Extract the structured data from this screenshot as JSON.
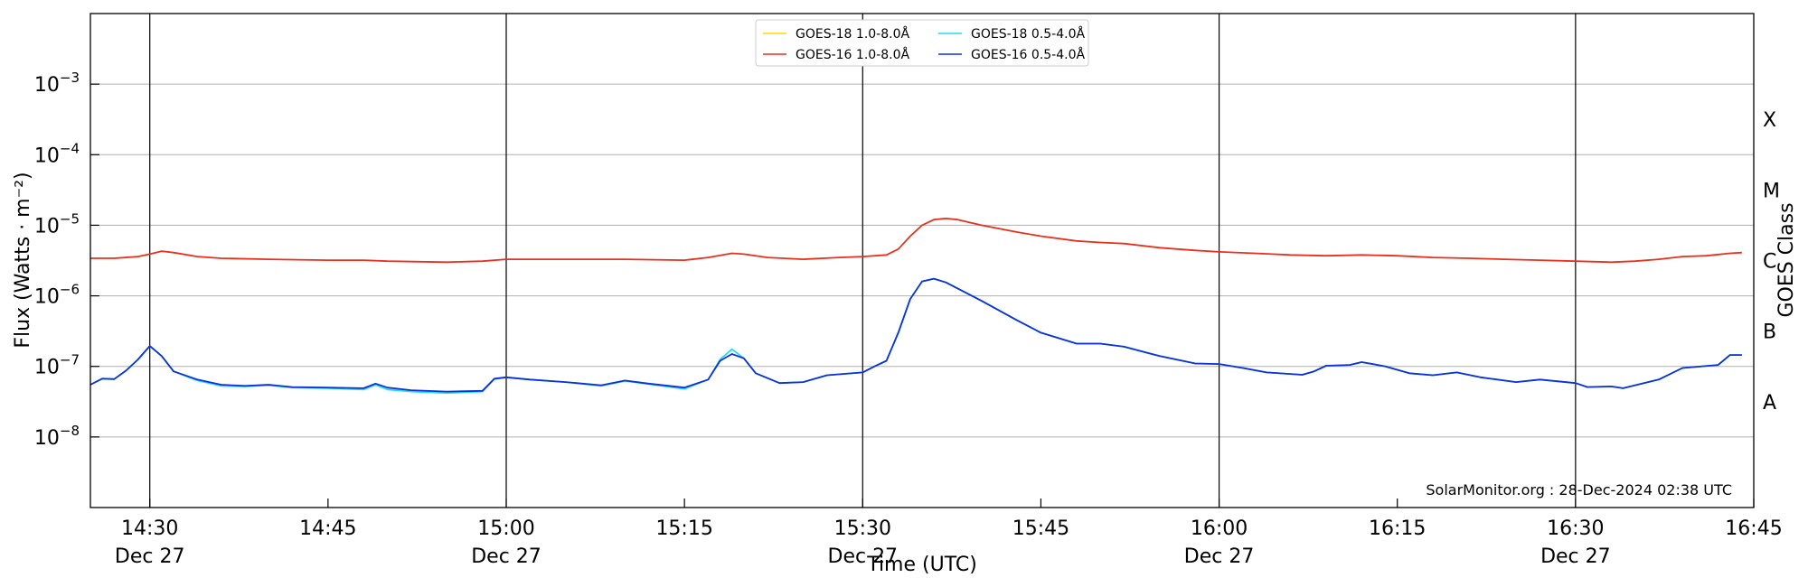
{
  "chart_data": {
    "type": "line",
    "xlabel": "Time (UTC)",
    "ylabel": "Flux (Watts · m⁻²)",
    "ylabel_right": "GOES Class",
    "yscale": "log",
    "xlim": [
      "14:25",
      "16:45"
    ],
    "ylim": [
      1e-09,
      0.01
    ],
    "grid": "horizontal at decades",
    "legend_position": "top-center",
    "x_ticks": [
      {
        "time": "14:30",
        "label": "14:30",
        "date": "Dec 27"
      },
      {
        "time": "14:45",
        "label": "14:45",
        "date": ""
      },
      {
        "time": "15:00",
        "label": "15:00",
        "date": "Dec 27"
      },
      {
        "time": "15:15",
        "label": "15:15",
        "date": ""
      },
      {
        "time": "15:30",
        "label": "15:30",
        "date": "Dec 27"
      },
      {
        "time": "15:45",
        "label": "15:45",
        "date": ""
      },
      {
        "time": "16:00",
        "label": "16:00",
        "date": "Dec 27"
      },
      {
        "time": "16:15",
        "label": "16:15",
        "date": ""
      },
      {
        "time": "16:30",
        "label": "16:30",
        "date": "Dec 27"
      },
      {
        "time": "16:45",
        "label": "16:45",
        "date": ""
      }
    ],
    "vertical_lines": [
      "14:30",
      "15:00",
      "15:30",
      "16:00",
      "16:30"
    ],
    "y_ticks": [
      {
        "value": 1e-08,
        "base": "10",
        "exp": "−8"
      },
      {
        "value": 1e-07,
        "base": "10",
        "exp": "−7"
      },
      {
        "value": 1e-06,
        "base": "10",
        "exp": "−6"
      },
      {
        "value": 1e-05,
        "base": "10",
        "exp": "−5"
      },
      {
        "value": 0.0001,
        "base": "10",
        "exp": "−4"
      },
      {
        "value": 0.001,
        "base": "10",
        "exp": "−3"
      }
    ],
    "goes_classes": [
      {
        "label": "A",
        "value": 3.16e-08
      },
      {
        "label": "B",
        "value": 3.16e-07
      },
      {
        "label": "C",
        "value": 3.16e-06
      },
      {
        "label": "M",
        "value": 3.16e-05
      },
      {
        "label": "X",
        "value": 0.000316
      }
    ],
    "series": [
      {
        "name": "GOES-18 1.0-8.0Å",
        "color": "#ffd700",
        "points": []
      },
      {
        "name": "GOES-16 1.0-8.0Å",
        "color": "#e8301c",
        "points": [
          [
            "14:25",
            3.4e-06
          ],
          [
            "14:27",
            3.4e-06
          ],
          [
            "14:29",
            3.6e-06
          ],
          [
            "14:30",
            3.9e-06
          ],
          [
            "14:31",
            4.3e-06
          ],
          [
            "14:32",
            4.1e-06
          ],
          [
            "14:34",
            3.6e-06
          ],
          [
            "14:36",
            3.4e-06
          ],
          [
            "14:40",
            3.3e-06
          ],
          [
            "14:45",
            3.2e-06
          ],
          [
            "14:48",
            3.2e-06
          ],
          [
            "14:50",
            3.1e-06
          ],
          [
            "14:55",
            3e-06
          ],
          [
            "14:58",
            3.1e-06
          ],
          [
            "15:00",
            3.3e-06
          ],
          [
            "15:05",
            3.3e-06
          ],
          [
            "15:10",
            3.3e-06
          ],
          [
            "15:15",
            3.2e-06
          ],
          [
            "15:17",
            3.5e-06
          ],
          [
            "15:19",
            4e-06
          ],
          [
            "15:20",
            3.9e-06
          ],
          [
            "15:22",
            3.5e-06
          ],
          [
            "15:25",
            3.3e-06
          ],
          [
            "15:28",
            3.5e-06
          ],
          [
            "15:30",
            3.6e-06
          ],
          [
            "15:32",
            3.8e-06
          ],
          [
            "15:33",
            4.6e-06
          ],
          [
            "15:34",
            7e-06
          ],
          [
            "15:35",
            1e-05
          ],
          [
            "15:36",
            1.2e-05
          ],
          [
            "15:37",
            1.25e-05
          ],
          [
            "15:38",
            1.2e-05
          ],
          [
            "15:40",
            1e-05
          ],
          [
            "15:43",
            8e-06
          ],
          [
            "15:45",
            7e-06
          ],
          [
            "15:48",
            6e-06
          ],
          [
            "15:50",
            5.7e-06
          ],
          [
            "15:52",
            5.5e-06
          ],
          [
            "15:55",
            4.8e-06
          ],
          [
            "15:58",
            4.4e-06
          ],
          [
            "16:00",
            4.2e-06
          ],
          [
            "16:03",
            4e-06
          ],
          [
            "16:06",
            3.8e-06
          ],
          [
            "16:09",
            3.7e-06
          ],
          [
            "16:12",
            3.8e-06
          ],
          [
            "16:15",
            3.7e-06
          ],
          [
            "16:18",
            3.5e-06
          ],
          [
            "16:21",
            3.4e-06
          ],
          [
            "16:24",
            3.3e-06
          ],
          [
            "16:27",
            3.2e-06
          ],
          [
            "16:30",
            3.1e-06
          ],
          [
            "16:33",
            3e-06
          ],
          [
            "16:35",
            3.1e-06
          ],
          [
            "16:37",
            3.3e-06
          ],
          [
            "16:39",
            3.6e-06
          ],
          [
            "16:41",
            3.7e-06
          ],
          [
            "16:43",
            4e-06
          ],
          [
            "16:44",
            4.1e-06
          ]
        ]
      },
      {
        "name": "GOES-18 0.5-4.0Å",
        "color": "#22ddee",
        "points": [
          [
            "14:25",
            5.5e-08
          ],
          [
            "14:26",
            6.7e-08
          ],
          [
            "14:27",
            6.6e-08
          ],
          [
            "14:28",
            8.7e-08
          ],
          [
            "14:29",
            1.25e-07
          ],
          [
            "14:30",
            1.95e-07
          ],
          [
            "14:31",
            1.4e-07
          ],
          [
            "14:32",
            8.5e-08
          ],
          [
            "14:34",
            6.3e-08
          ],
          [
            "14:36",
            5.3e-08
          ],
          [
            "14:38",
            5.2e-08
          ],
          [
            "14:40",
            5.4e-08
          ],
          [
            "14:42",
            5e-08
          ],
          [
            "14:45",
            4.9e-08
          ],
          [
            "14:48",
            4.7e-08
          ],
          [
            "14:49",
            5.5e-08
          ],
          [
            "14:50",
            4.7e-08
          ],
          [
            "14:52",
            4.4e-08
          ],
          [
            "14:55",
            4.2e-08
          ],
          [
            "14:58",
            4.4e-08
          ],
          [
            "14:59",
            6.6e-08
          ],
          [
            "15:00",
            7e-08
          ],
          [
            "15:02",
            6.5e-08
          ],
          [
            "15:05",
            6e-08
          ],
          [
            "15:08",
            5.3e-08
          ],
          [
            "15:10",
            6.2e-08
          ],
          [
            "15:12",
            5.6e-08
          ],
          [
            "15:15",
            4.8e-08
          ],
          [
            "15:17",
            6.5e-08
          ],
          [
            "15:18",
            1.25e-07
          ],
          [
            "15:19",
            1.75e-07
          ],
          [
            "15:20",
            1.3e-07
          ],
          [
            "15:21",
            8e-08
          ],
          [
            "15:23",
            5.8e-08
          ],
          [
            "15:25",
            6e-08
          ],
          [
            "15:27",
            7.5e-08
          ],
          [
            "15:30",
            8.2e-08
          ],
          [
            "15:31",
            1e-07
          ],
          [
            "15:32",
            1.2e-07
          ],
          [
            "15:33",
            3e-07
          ],
          [
            "15:34",
            9e-07
          ],
          [
            "15:35",
            1.6e-06
          ],
          [
            "15:36",
            1.75e-06
          ],
          [
            "15:37",
            1.55e-06
          ],
          [
            "15:40",
            8.5e-07
          ],
          [
            "15:43",
            4.5e-07
          ],
          [
            "15:45",
            3e-07
          ],
          [
            "15:48",
            2.1e-07
          ],
          [
            "15:50",
            2.1e-07
          ],
          [
            "15:52",
            1.9e-07
          ],
          [
            "15:55",
            1.4e-07
          ],
          [
            "15:58",
            1.1e-07
          ],
          [
            "16:00",
            1.08e-07
          ],
          [
            "16:02",
            9.5e-08
          ],
          [
            "16:04",
            8.2e-08
          ],
          [
            "16:07",
            7.6e-08
          ],
          [
            "16:08",
            8.5e-08
          ],
          [
            "16:09",
            1.02e-07
          ],
          [
            "16:11",
            1.05e-07
          ],
          [
            "16:12",
            1.15e-07
          ],
          [
            "16:14",
            1e-07
          ],
          [
            "16:16",
            8e-08
          ],
          [
            "16:18",
            7.5e-08
          ],
          [
            "16:20",
            8.2e-08
          ],
          [
            "16:22",
            7e-08
          ],
          [
            "16:25",
            6e-08
          ],
          [
            "16:27",
            6.5e-08
          ],
          [
            "16:30",
            5.8e-08
          ],
          [
            "16:31",
            5.1e-08
          ],
          [
            "16:33",
            5.2e-08
          ],
          [
            "16:34",
            4.9e-08
          ],
          [
            "16:37",
            6.5e-08
          ],
          [
            "16:39",
            9.5e-08
          ],
          [
            "16:42",
            1.05e-07
          ],
          [
            "16:43",
            1.45e-07
          ],
          [
            "16:44",
            1.45e-07
          ]
        ]
      },
      {
        "name": "GOES-16 0.5-4.0Å",
        "color": "#1030d8",
        "points": [
          [
            "14:25",
            5.5e-08
          ],
          [
            "14:26",
            6.7e-08
          ],
          [
            "14:27",
            6.6e-08
          ],
          [
            "14:28",
            8.7e-08
          ],
          [
            "14:29",
            1.25e-07
          ],
          [
            "14:30",
            1.95e-07
          ],
          [
            "14:31",
            1.4e-07
          ],
          [
            "14:32",
            8.5e-08
          ],
          [
            "14:34",
            6.5e-08
          ],
          [
            "14:36",
            5.5e-08
          ],
          [
            "14:38",
            5.3e-08
          ],
          [
            "14:40",
            5.5e-08
          ],
          [
            "14:42",
            5.1e-08
          ],
          [
            "14:45",
            5e-08
          ],
          [
            "14:48",
            4.9e-08
          ],
          [
            "14:49",
            5.7e-08
          ],
          [
            "14:50",
            5e-08
          ],
          [
            "14:52",
            4.6e-08
          ],
          [
            "14:55",
            4.4e-08
          ],
          [
            "14:58",
            4.5e-08
          ],
          [
            "14:59",
            6.7e-08
          ],
          [
            "15:00",
            7e-08
          ],
          [
            "15:02",
            6.5e-08
          ],
          [
            "15:05",
            6e-08
          ],
          [
            "15:08",
            5.4e-08
          ],
          [
            "15:10",
            6.3e-08
          ],
          [
            "15:12",
            5.7e-08
          ],
          [
            "15:15",
            5e-08
          ],
          [
            "15:17",
            6.5e-08
          ],
          [
            "15:18",
            1.2e-07
          ],
          [
            "15:19",
            1.5e-07
          ],
          [
            "15:20",
            1.3e-07
          ],
          [
            "15:21",
            8e-08
          ],
          [
            "15:23",
            5.8e-08
          ],
          [
            "15:25",
            6e-08
          ],
          [
            "15:27",
            7.5e-08
          ],
          [
            "15:30",
            8.2e-08
          ],
          [
            "15:31",
            1e-07
          ],
          [
            "15:32",
            1.2e-07
          ],
          [
            "15:33",
            3e-07
          ],
          [
            "15:34",
            9e-07
          ],
          [
            "15:35",
            1.6e-06
          ],
          [
            "15:36",
            1.75e-06
          ],
          [
            "15:37",
            1.55e-06
          ],
          [
            "15:40",
            8.5e-07
          ],
          [
            "15:43",
            4.5e-07
          ],
          [
            "15:45",
            3e-07
          ],
          [
            "15:48",
            2.1e-07
          ],
          [
            "15:50",
            2.1e-07
          ],
          [
            "15:52",
            1.9e-07
          ],
          [
            "15:55",
            1.4e-07
          ],
          [
            "15:58",
            1.1e-07
          ],
          [
            "16:00",
            1.08e-07
          ],
          [
            "16:02",
            9.5e-08
          ],
          [
            "16:04",
            8.2e-08
          ],
          [
            "16:07",
            7.6e-08
          ],
          [
            "16:08",
            8.5e-08
          ],
          [
            "16:09",
            1.02e-07
          ],
          [
            "16:11",
            1.05e-07
          ],
          [
            "16:12",
            1.15e-07
          ],
          [
            "16:14",
            1e-07
          ],
          [
            "16:16",
            8e-08
          ],
          [
            "16:18",
            7.5e-08
          ],
          [
            "16:20",
            8.2e-08
          ],
          [
            "16:22",
            7e-08
          ],
          [
            "16:25",
            6e-08
          ],
          [
            "16:27",
            6.5e-08
          ],
          [
            "16:30",
            5.8e-08
          ],
          [
            "16:31",
            5.1e-08
          ],
          [
            "16:33",
            5.2e-08
          ],
          [
            "16:34",
            4.9e-08
          ],
          [
            "16:37",
            6.5e-08
          ],
          [
            "16:39",
            9.5e-08
          ],
          [
            "16:42",
            1.05e-07
          ],
          [
            "16:43",
            1.45e-07
          ],
          [
            "16:44",
            1.45e-07
          ]
        ]
      }
    ]
  },
  "credit": "SolarMonitor.org : 28-Dec-2024 02:38 UTC"
}
